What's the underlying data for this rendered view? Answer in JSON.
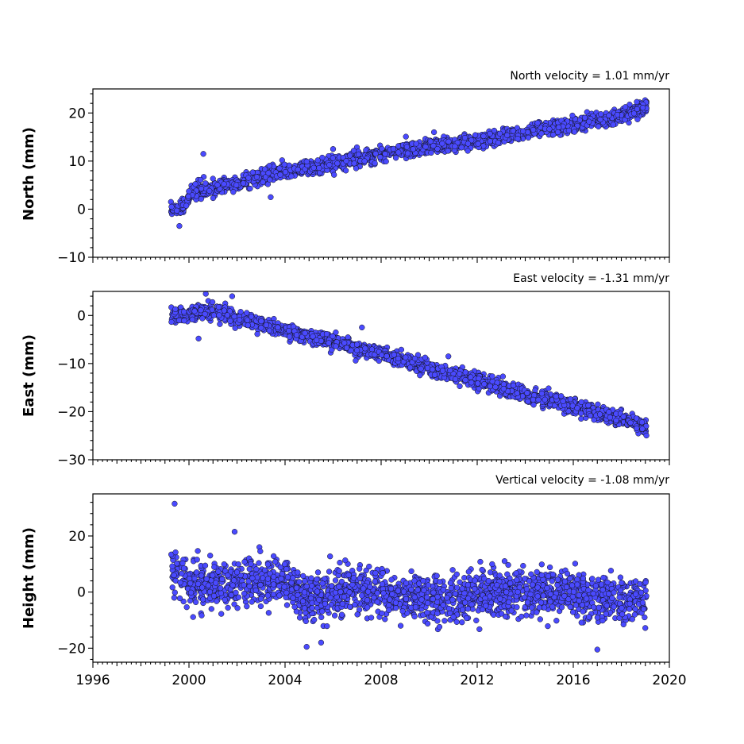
{
  "chart_data": [
    {
      "type": "scatter",
      "title": "North velocity = 1.01 mm/yr",
      "ylabel": "North (mm)",
      "xlabel": "",
      "xlim": [
        1996,
        2020
      ],
      "ylim": [
        -10,
        25
      ],
      "yticks": [
        -10,
        0,
        10,
        20
      ],
      "xticks": [
        1996,
        2000,
        2004,
        2008,
        2012,
        2016,
        2020
      ],
      "show_xtick_labels": false,
      "grid": false,
      "color": "#4a4aff",
      "series": [
        {
          "x_start": 1999.25,
          "x_end": 2019.05,
          "trend": [
            [
              1999.3,
              0.0
            ],
            [
              1999.9,
              1.0
            ],
            [
              2000.1,
              3.5
            ],
            [
              2002,
              5.5
            ],
            [
              2004,
              8.0
            ],
            [
              2006,
              9.5
            ],
            [
              2008,
              11.5
            ],
            [
              2010,
              13.0
            ],
            [
              2012,
              14.2
            ],
            [
              2014,
              16.0
            ],
            [
              2016,
              17.5
            ],
            [
              2018,
              19.5
            ],
            [
              2019.05,
              21.5
            ]
          ],
          "scatter_sd": 1.0,
          "outliers": [
            [
              2000.6,
              11.5
            ],
            [
              1999.6,
              -3.5
            ],
            [
              2003.4,
              2.5
            ],
            [
              2006.0,
              12.5
            ],
            [
              2010.2,
              16.0
            ]
          ]
        }
      ]
    },
    {
      "type": "scatter",
      "title": "East velocity = -1.31 mm/yr",
      "ylabel": "East (mm)",
      "xlabel": "",
      "xlim": [
        1996,
        2020
      ],
      "ylim": [
        -30,
        5
      ],
      "yticks": [
        -30,
        -20,
        -10,
        0
      ],
      "xticks": [
        1996,
        2000,
        2004,
        2008,
        2012,
        2016,
        2020
      ],
      "show_xtick_labels": false,
      "grid": false,
      "color": "#4a4aff",
      "series": [
        {
          "x_start": 1999.25,
          "x_end": 2019.05,
          "trend": [
            [
              1999.3,
              0.0
            ],
            [
              2001,
              1.0
            ],
            [
              2002,
              -0.5
            ],
            [
              2004,
              -3.0
            ],
            [
              2006,
              -5.5
            ],
            [
              2008,
              -8.0
            ],
            [
              2010,
              -11.0
            ],
            [
              2012,
              -13.5
            ],
            [
              2014,
              -16.5
            ],
            [
              2016,
              -19.0
            ],
            [
              2018,
              -21.5
            ],
            [
              2019.05,
              -23.5
            ]
          ],
          "scatter_sd": 1.0,
          "outliers": [
            [
              2000.7,
              4.5
            ],
            [
              2001.8,
              4.0
            ],
            [
              2000.4,
              -4.8
            ],
            [
              2007.2,
              -2.5
            ],
            [
              2010.8,
              -8.5
            ]
          ]
        }
      ]
    },
    {
      "type": "scatter",
      "title": "Vertical velocity = -1.08 mm/yr",
      "ylabel": "Height (mm)",
      "xlabel": "",
      "xlim": [
        1996,
        2020
      ],
      "ylim": [
        -25,
        35
      ],
      "yticks": [
        -20,
        0,
        20
      ],
      "xticks": [
        1996,
        2000,
        2004,
        2008,
        2012,
        2016,
        2020
      ],
      "show_xtick_labels": true,
      "grid": false,
      "color": "#4a4aff",
      "series": [
        {
          "x_start": 1999.25,
          "x_end": 2019.05,
          "trend": [
            [
              1999.3,
              8.0
            ],
            [
              2000,
              2.0
            ],
            [
              2002,
              3.0
            ],
            [
              2004,
              4.0
            ],
            [
              2005,
              -3.0
            ],
            [
              2007,
              1.0
            ],
            [
              2010,
              -3.0
            ],
            [
              2012,
              -1.0
            ],
            [
              2014,
              0.0
            ],
            [
              2016,
              0.0
            ],
            [
              2018,
              -4.0
            ],
            [
              2019.05,
              -3.0
            ]
          ],
          "scatter_sd": 5.5,
          "outliers": [
            [
              1999.4,
              31.5
            ],
            [
              2001.9,
              21.5
            ],
            [
              2017.0,
              -20.5
            ],
            [
              2004.9,
              -19.5
            ],
            [
              2005.5,
              -18.0
            ]
          ]
        }
      ]
    }
  ]
}
